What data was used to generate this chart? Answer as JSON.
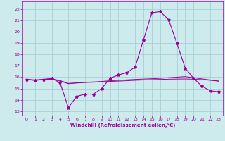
{
  "xlabel": "Windchill (Refroidissement éolien,°C)",
  "bg_color": "#cdeaed",
  "grid_color": "#a0cdd1",
  "line_color": "#990099",
  "x_ticks": [
    0,
    1,
    2,
    3,
    4,
    5,
    6,
    7,
    8,
    9,
    10,
    11,
    12,
    13,
    14,
    15,
    16,
    17,
    18,
    19,
    20,
    21,
    22,
    23
  ],
  "y_ticks": [
    13,
    14,
    15,
    16,
    17,
    18,
    19,
    20,
    21,
    22
  ],
  "ylim": [
    12.6,
    22.7
  ],
  "xlim": [
    -0.5,
    23.5
  ],
  "series1_x": [
    0,
    1,
    2,
    3,
    4,
    5,
    6,
    7,
    8,
    9,
    10,
    11,
    12,
    13,
    14,
    15,
    16,
    17,
    18,
    19,
    20,
    21,
    22,
    23
  ],
  "series1_y": [
    15.8,
    15.7,
    15.8,
    15.9,
    15.5,
    13.3,
    14.3,
    14.5,
    14.5,
    15.0,
    15.9,
    16.2,
    16.4,
    16.9,
    19.3,
    21.7,
    21.8,
    21.1,
    19.0,
    16.8,
    15.9,
    15.2,
    14.8,
    14.7
  ],
  "series2_x": [
    0,
    1,
    2,
    3,
    4,
    5,
    6,
    7,
    8,
    9,
    10,
    11,
    12,
    13,
    14,
    15,
    16,
    17,
    18,
    19,
    20,
    21,
    22,
    23
  ],
  "series2_y": [
    15.8,
    15.75,
    15.8,
    15.85,
    15.7,
    15.45,
    15.5,
    15.55,
    15.58,
    15.62,
    15.68,
    15.72,
    15.76,
    15.8,
    15.83,
    15.86,
    15.9,
    15.95,
    16.0,
    16.05,
    15.95,
    15.85,
    15.75,
    15.65
  ],
  "series3_x": [
    0,
    1,
    2,
    3,
    4,
    5,
    6,
    7,
    8,
    9,
    10,
    11,
    12,
    13,
    14,
    15,
    16,
    17,
    18,
    19,
    20,
    21,
    22,
    23
  ],
  "series3_y": [
    15.8,
    15.75,
    15.78,
    15.82,
    15.65,
    15.42,
    15.48,
    15.52,
    15.55,
    15.58,
    15.62,
    15.65,
    15.68,
    15.72,
    15.75,
    15.78,
    15.8,
    15.82,
    15.83,
    15.84,
    15.82,
    15.78,
    15.72,
    15.65
  ]
}
